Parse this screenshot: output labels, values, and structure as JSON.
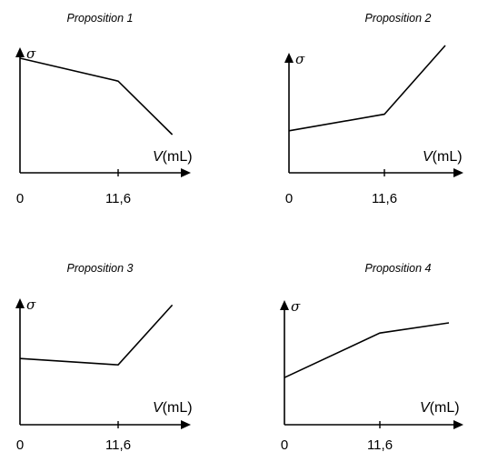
{
  "chart_data": [
    {
      "type": "line",
      "title": "Proposition 1",
      "ylabel": "σ",
      "xlabel_var": "V",
      "xlabel_unit": "(mL)",
      "x_ticks": [
        {
          "value": 0,
          "label": "0"
        },
        {
          "value": 11.6,
          "label": "11,6"
        }
      ],
      "x": [
        0,
        11.6,
        18
      ],
      "y": [
        0.9,
        0.72,
        0.3
      ],
      "xlim": [
        0,
        19
      ],
      "ylim": [
        0,
        1
      ]
    },
    {
      "type": "line",
      "title": "Proposition 2",
      "ylabel": "σ",
      "xlabel_var": "V",
      "xlabel_unit": "(mL)",
      "x_ticks": [
        {
          "value": 0,
          "label": "0"
        },
        {
          "value": 11.6,
          "label": "11,6"
        }
      ],
      "x": [
        0,
        11.6,
        19
      ],
      "y": [
        0.33,
        0.46,
        1.0
      ],
      "xlim": [
        0,
        19
      ],
      "ylim": [
        0,
        1
      ]
    },
    {
      "type": "line",
      "title": "Proposition 3",
      "ylabel": "σ",
      "xlabel_var": "V",
      "xlabel_unit": "(mL)",
      "x_ticks": [
        {
          "value": 0,
          "label": "0"
        },
        {
          "value": 11.6,
          "label": "11,6"
        }
      ],
      "x": [
        0,
        11.6,
        18
      ],
      "y": [
        0.52,
        0.47,
        0.94
      ],
      "xlim": [
        0,
        19
      ],
      "ylim": [
        0,
        1
      ]
    },
    {
      "type": "line",
      "title": "Proposition 4",
      "ylabel": "σ",
      "xlabel_var": "V",
      "xlabel_unit": "(mL)",
      "x_ticks": [
        {
          "value": 0,
          "label": "0"
        },
        {
          "value": 11.6,
          "label": "11,6"
        }
      ],
      "x": [
        0,
        11.6,
        20
      ],
      "y": [
        0.37,
        0.72,
        0.8
      ],
      "xlim": [
        0,
        20
      ],
      "ylim": [
        0,
        1
      ]
    }
  ]
}
